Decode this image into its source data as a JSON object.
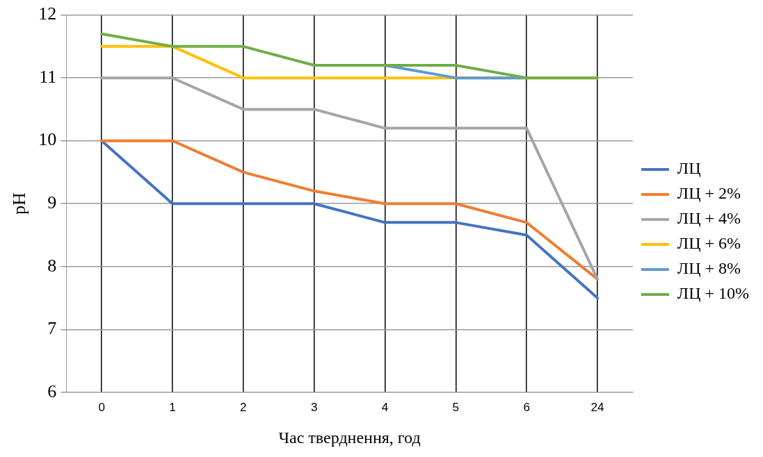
{
  "chart_data": {
    "type": "line",
    "xlabel": "Час тверднення, год",
    "ylabel": "pH",
    "categories": [
      "0",
      "1",
      "2",
      "3",
      "4",
      "5",
      "6",
      "24"
    ],
    "ylim": [
      6,
      12
    ],
    "yticks": [
      6,
      7,
      8,
      9,
      10,
      11,
      12
    ],
    "grid": true,
    "legend": "right",
    "marker": "none",
    "line_style": "solid",
    "series": [
      {
        "name": "ЛЦ",
        "color": "#4472c4",
        "values": [
          10,
          9,
          9,
          9,
          8.7,
          8.7,
          8.5,
          7.5
        ]
      },
      {
        "name": "ЛЦ + 2%",
        "color": "#ed7d31",
        "values": [
          10,
          10,
          9.5,
          9.2,
          9,
          9,
          8.7,
          7.8
        ]
      },
      {
        "name": "ЛЦ + 4%",
        "color": "#a5a5a5",
        "values": [
          11,
          11,
          10.5,
          10.5,
          10.2,
          10.2,
          10.2,
          7.8
        ]
      },
      {
        "name": "ЛЦ + 6%",
        "color": "#ffc000",
        "values": [
          11.5,
          11.5,
          11,
          11,
          11,
          11,
          11,
          11
        ]
      },
      {
        "name": "ЛЦ + 8%",
        "color": "#5b9bd5",
        "values": [
          null,
          null,
          null,
          null,
          11.2,
          11,
          11,
          null
        ]
      },
      {
        "name": "ЛЦ + 10%",
        "color": "#70ad47",
        "values": [
          11.7,
          11.5,
          11.5,
          11.2,
          11.2,
          11.2,
          11,
          11
        ]
      }
    ]
  }
}
